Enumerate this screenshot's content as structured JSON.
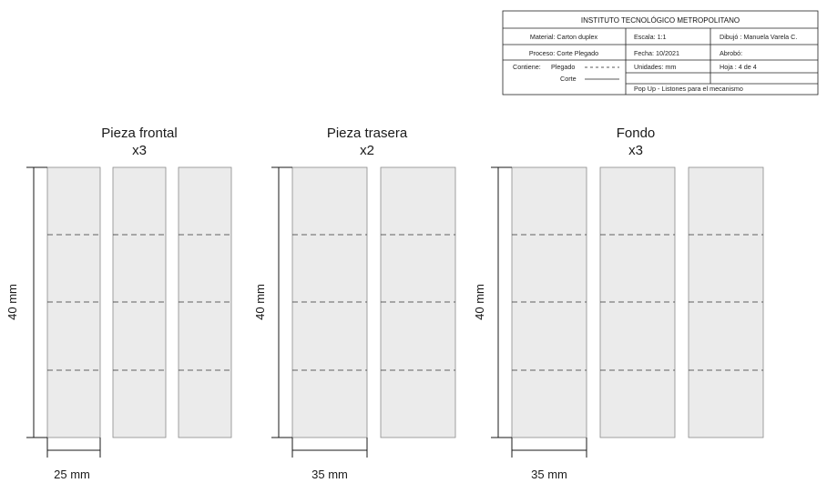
{
  "title_block": {
    "institution": "INSTITUTO TECNOLÓGICO METROPOLITANO",
    "material": "Material: Carton duplex",
    "escala": "Escala: 1:1",
    "dibujo": "Dibujó : Manuela Varela C.",
    "proceso": "Proceso: Corte   Plegado",
    "fecha": "Fecha: 10/2021",
    "aprobo": "Abrobó:",
    "contiene": "Contiene:",
    "plegado": "Plegado",
    "corte": "Corte",
    "unidades": "Unidades: mm",
    "hoja": "Hoja : 4 de 4",
    "descripcion": "Pop Up - Listones para el mecanismo"
  },
  "groups": [
    {
      "name": "Pieza frontal",
      "qty": "x3",
      "height_label": "40 mm",
      "width_label": "25 mm"
    },
    {
      "name": "Pieza trasera",
      "qty": "x2",
      "height_label": "40 mm",
      "width_label": "35 mm"
    },
    {
      "name": "Fondo",
      "qty": "x3",
      "height_label": "40 mm",
      "width_label": "35 mm"
    }
  ],
  "colors": {
    "piece_fill": "#ebebeb",
    "piece_stroke": "#8a8a8a",
    "line": "#1a1a1a"
  }
}
